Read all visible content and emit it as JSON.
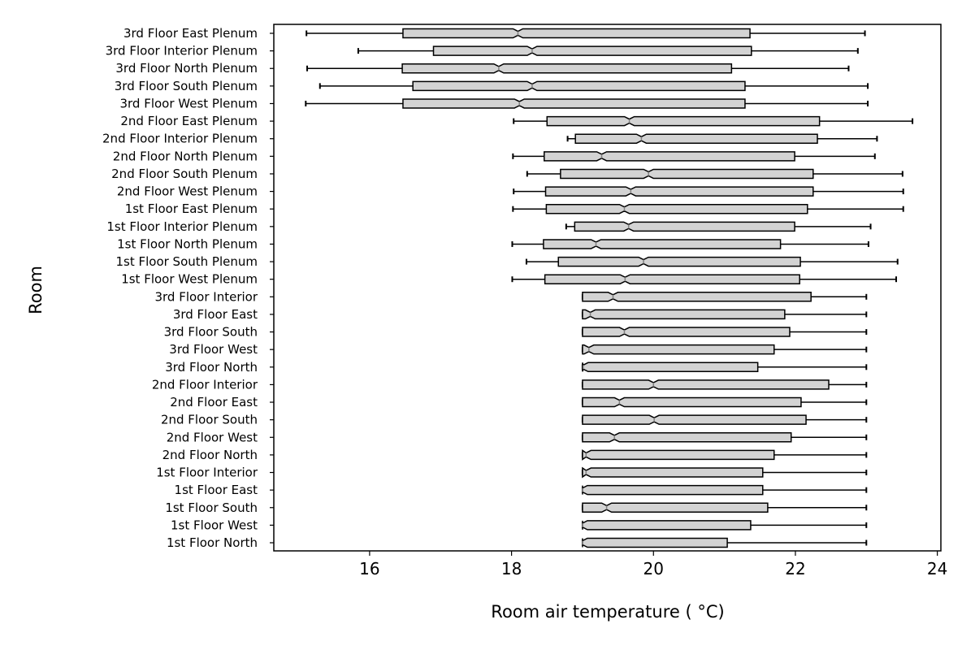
{
  "chart_data": {
    "type": "boxplot",
    "orientation": "horizontal",
    "notched": true,
    "title": "",
    "xlabel": "Room air temperature ( °C)",
    "ylabel": "Room",
    "xlim": [
      14.65,
      24.05
    ],
    "xticks": [
      16,
      18,
      20,
      22,
      24
    ],
    "grid": false,
    "legend": null,
    "colors": {
      "box_fill": "#d3d3d3",
      "box_edge": "#000000",
      "median": "#808080",
      "whisker": "#000000",
      "axes": "#000000"
    },
    "categories": [
      "3rd Floor East Plenum",
      "3rd Floor Interior Plenum",
      "3rd Floor North Plenum",
      "3rd Floor South Plenum",
      "3rd Floor West Plenum",
      "2nd Floor East Plenum",
      "2nd Floor Interior Plenum",
      "2nd Floor North Plenum",
      "2nd Floor South Plenum",
      "2nd Floor West Plenum",
      "1st Floor East Plenum",
      "1st Floor Interior Plenum",
      "1st Floor North Plenum",
      "1st Floor South Plenum",
      "1st Floor West Plenum",
      "3rd Floor Interior",
      "3rd Floor East",
      "3rd Floor South",
      "3rd Floor West",
      "3rd Floor North",
      "2nd Floor Interior",
      "2nd Floor East",
      "2nd Floor South",
      "2nd Floor West",
      "2nd Floor North",
      "1st Floor Interior",
      "1st Floor East",
      "1st Floor South",
      "1st Floor West",
      "1st Floor North"
    ],
    "boxes": [
      {
        "whislo": 15.11,
        "q1": 16.47,
        "med": 18.09,
        "q3": 21.36,
        "whishi": 22.98
      },
      {
        "whislo": 15.84,
        "q1": 16.9,
        "med": 18.29,
        "q3": 21.38,
        "whishi": 22.88
      },
      {
        "whislo": 15.12,
        "q1": 16.46,
        "med": 17.82,
        "q3": 21.1,
        "whishi": 22.75
      },
      {
        "whislo": 15.3,
        "q1": 16.61,
        "med": 18.29,
        "q3": 21.29,
        "whishi": 23.02
      },
      {
        "whislo": 15.1,
        "q1": 16.47,
        "med": 18.11,
        "q3": 21.29,
        "whishi": 23.02
      },
      {
        "whislo": 18.03,
        "q1": 18.5,
        "med": 19.66,
        "q3": 22.34,
        "whishi": 23.65
      },
      {
        "whislo": 18.79,
        "q1": 18.9,
        "med": 19.83,
        "q3": 22.31,
        "whishi": 23.15
      },
      {
        "whislo": 18.02,
        "q1": 18.46,
        "med": 19.27,
        "q3": 21.99,
        "whishi": 23.12
      },
      {
        "whislo": 18.22,
        "q1": 18.69,
        "med": 19.93,
        "q3": 22.25,
        "whishi": 23.51
      },
      {
        "whislo": 18.03,
        "q1": 18.48,
        "med": 19.68,
        "q3": 22.25,
        "whishi": 23.52
      },
      {
        "whislo": 18.02,
        "q1": 18.49,
        "med": 19.59,
        "q3": 22.17,
        "whishi": 23.52
      },
      {
        "whislo": 18.77,
        "q1": 18.89,
        "med": 19.65,
        "q3": 21.99,
        "whishi": 23.06
      },
      {
        "whislo": 18.01,
        "q1": 18.45,
        "med": 19.19,
        "q3": 21.79,
        "whishi": 23.03
      },
      {
        "whislo": 18.21,
        "q1": 18.66,
        "med": 19.86,
        "q3": 22.07,
        "whishi": 23.44
      },
      {
        "whislo": 18.01,
        "q1": 18.47,
        "med": 19.6,
        "q3": 22.06,
        "whishi": 23.42
      },
      {
        "whislo": 19.0,
        "q1": 19.0,
        "med": 19.43,
        "q3": 22.22,
        "whishi": 23.0
      },
      {
        "whislo": 19.0,
        "q1": 19.0,
        "med": 19.11,
        "q3": 21.85,
        "whishi": 23.0
      },
      {
        "whislo": 19.0,
        "q1": 19.0,
        "med": 19.59,
        "q3": 21.92,
        "whishi": 23.0
      },
      {
        "whislo": 19.0,
        "q1": 19.0,
        "med": 19.09,
        "q3": 21.7,
        "whishi": 23.0
      },
      {
        "whislo": 19.0,
        "q1": 19.0,
        "med": 19.01,
        "q3": 21.47,
        "whishi": 23.0
      },
      {
        "whislo": 19.0,
        "q1": 19.0,
        "med": 20.0,
        "q3": 22.47,
        "whishi": 23.0
      },
      {
        "whislo": 19.0,
        "q1": 19.0,
        "med": 19.52,
        "q3": 22.08,
        "whishi": 23.0
      },
      {
        "whislo": 19.0,
        "q1": 19.0,
        "med": 20.01,
        "q3": 22.15,
        "whishi": 23.0
      },
      {
        "whislo": 19.0,
        "q1": 19.0,
        "med": 19.45,
        "q3": 21.94,
        "whishi": 23.0
      },
      {
        "whislo": 19.0,
        "q1": 19.0,
        "med": 19.05,
        "q3": 21.7,
        "whishi": 23.0
      },
      {
        "whislo": 19.0,
        "q1": 19.0,
        "med": 19.05,
        "q3": 21.54,
        "whishi": 23.0
      },
      {
        "whislo": 19.0,
        "q1": 19.0,
        "med": 19.0,
        "q3": 21.54,
        "whishi": 23.0
      },
      {
        "whislo": 19.0,
        "q1": 19.0,
        "med": 19.34,
        "q3": 21.61,
        "whishi": 23.0
      },
      {
        "whislo": 19.0,
        "q1": 19.0,
        "med": 19.0,
        "q3": 21.37,
        "whishi": 23.0
      },
      {
        "whislo": 19.0,
        "q1": 19.0,
        "med": 19.0,
        "q3": 21.04,
        "whishi": 23.0
      }
    ]
  }
}
